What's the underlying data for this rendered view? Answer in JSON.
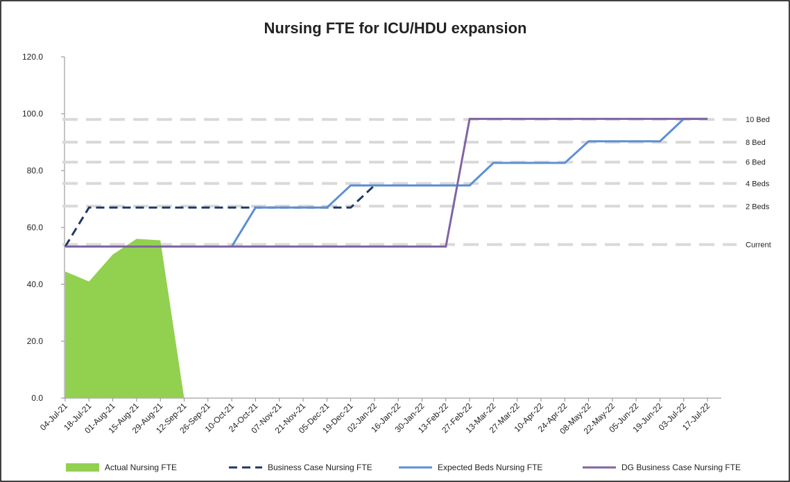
{
  "chart_data": {
    "type": "line",
    "title": "Nursing FTE for ICU/HDU expansion",
    "categories": [
      "04-Jul-21",
      "18-Jul-21",
      "01-Aug-21",
      "15-Aug-21",
      "29-Aug-21",
      "12-Sep-21",
      "26-Sep-21",
      "10-Oct-21",
      "24-Oct-21",
      "07-Nov-21",
      "21-Nov-21",
      "05-Dec-21",
      "19-Dec-21",
      "02-Jan-22",
      "16-Jan-22",
      "30-Jan-22",
      "13-Feb-22",
      "27-Feb-22",
      "13-Mar-22",
      "27-Mar-22",
      "10-Apr-22",
      "24-Apr-22",
      "08-May-22",
      "22-May-22",
      "05-Jun-22",
      "19-Jun-22",
      "03-Jul-22",
      "17-Jul-22"
    ],
    "series": [
      {
        "name": "Actual Nursing FTE",
        "color": "#92d050",
        "style": "area",
        "values": [
          44.5,
          41,
          50.5,
          56,
          55.5,
          0,
          null,
          null,
          null,
          null,
          null,
          null,
          null,
          null,
          null,
          null,
          null,
          null,
          null,
          null,
          null,
          null,
          null,
          null,
          null,
          null,
          null,
          null
        ]
      },
      {
        "name": "Business Case Nursing FTE",
        "color": "#1f3864",
        "style": "dashed",
        "values": [
          53.3,
          67,
          67,
          67,
          67,
          67,
          67,
          67,
          67,
          67,
          67,
          67,
          67,
          74.8,
          null,
          null,
          null,
          null,
          null,
          null,
          null,
          null,
          null,
          null,
          null,
          null,
          null,
          null
        ]
      },
      {
        "name": "Expected Beds Nursing FTE",
        "color": "#5b8fd4",
        "style": "solid",
        "values": [
          53.3,
          53.3,
          53.3,
          53.3,
          53.3,
          53.3,
          53.3,
          53.3,
          67,
          67,
          67,
          67,
          74.8,
          74.8,
          74.8,
          74.8,
          74.8,
          74.8,
          82.7,
          82.7,
          82.7,
          82.7,
          90.3,
          90.3,
          90.3,
          90.3,
          98.2,
          98.2
        ]
      },
      {
        "name": "DG Business Case Nursing FTE",
        "color": "#8064a2",
        "style": "solid",
        "values": [
          53.3,
          53.3,
          53.3,
          53.3,
          53.3,
          53.3,
          53.3,
          53.3,
          53.3,
          53.3,
          53.3,
          53.3,
          53.3,
          53.3,
          53.3,
          53.3,
          53.3,
          98.2,
          98.2,
          98.2,
          98.2,
          98.2,
          98.2,
          98.2,
          98.2,
          98.2,
          98.2,
          98.2
        ]
      }
    ],
    "reference_lines": [
      {
        "label": "10 Bed",
        "value": 98
      },
      {
        "label": "8 Bed",
        "value": 90
      },
      {
        "label": "6 Bed",
        "value": 83
      },
      {
        "label": "4 Beds",
        "value": 75.5
      },
      {
        "label": "2 Beds",
        "value": 67.5
      },
      {
        "label": "Current",
        "value": 54
      }
    ],
    "ylim": [
      0,
      120
    ],
    "yticks": [
      {
        "value": 0,
        "label": "0.0"
      },
      {
        "value": 20,
        "label": "20.0"
      },
      {
        "value": 40,
        "label": "40.0"
      },
      {
        "value": 60,
        "label": "60.0"
      },
      {
        "value": 80,
        "label": "80.0"
      },
      {
        "value": 100,
        "label": "100.0"
      },
      {
        "value": 120,
        "label": "120.0"
      }
    ],
    "legend": "bottom"
  }
}
